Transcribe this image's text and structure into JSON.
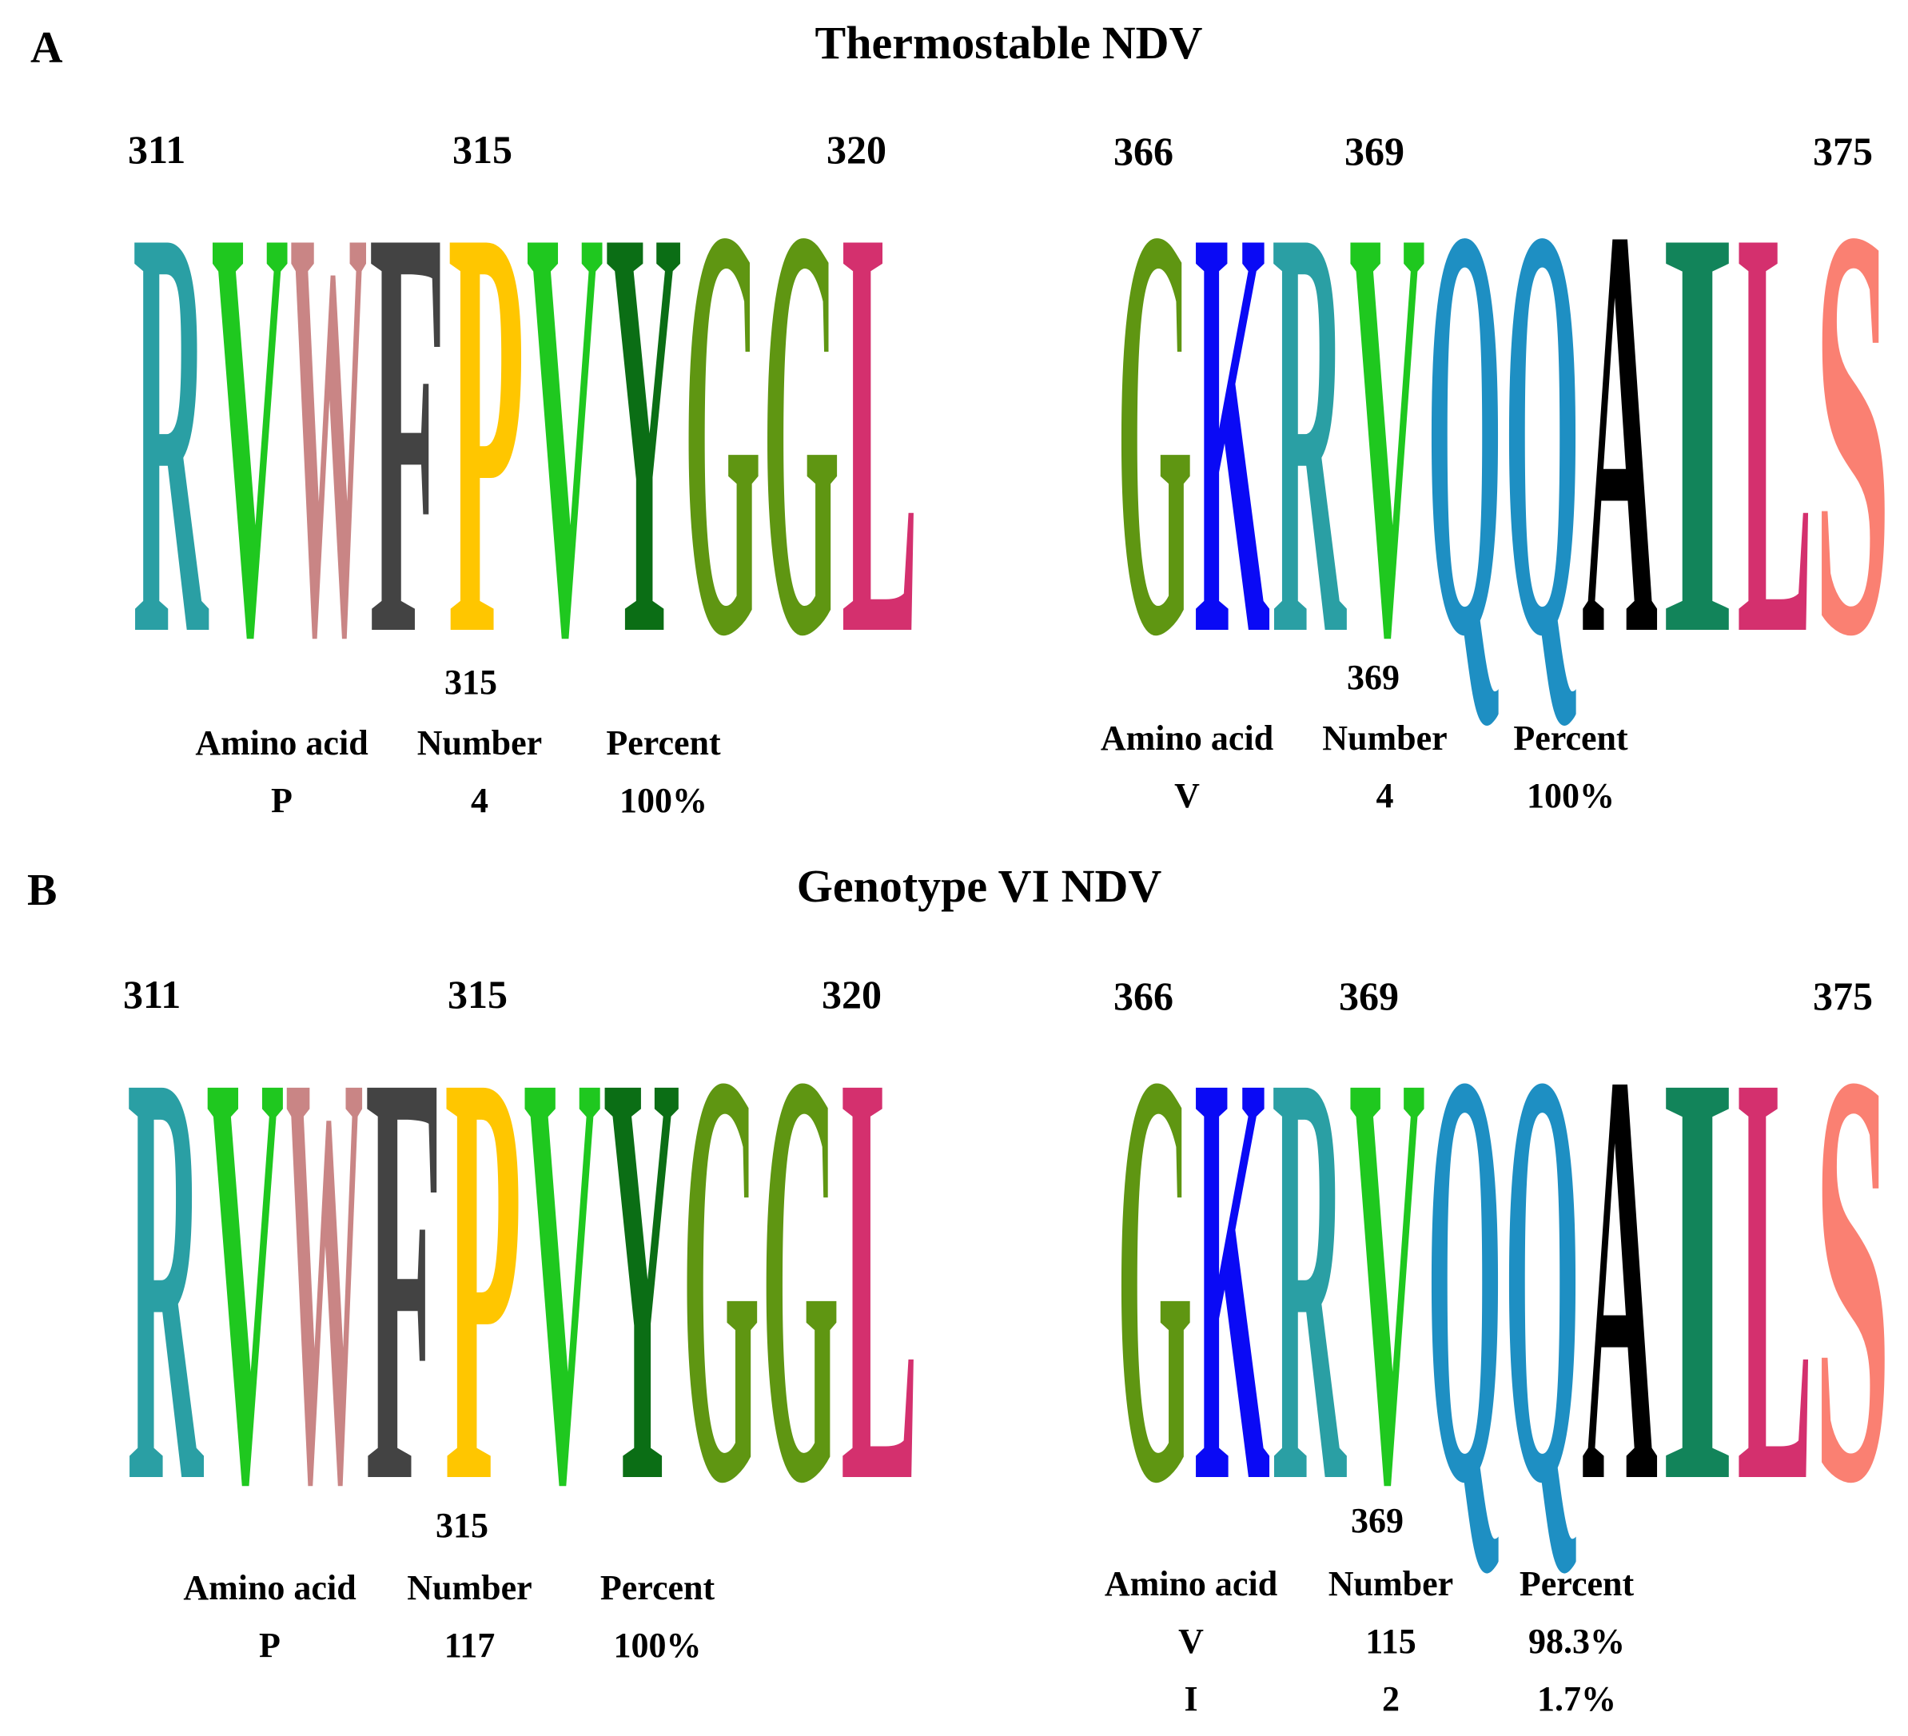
{
  "colors": {
    "R": "#2a9fa4",
    "V": "#1fc81f",
    "W": "#c98585",
    "F": "#434343",
    "P": "#ffc600",
    "Y": "#0b6e15",
    "G": "#5f9612",
    "L": "#d4306e",
    "K": "#0a0af5",
    "Q": "#1e8fc3",
    "A": "#000000",
    "I": "#12845a",
    "S": "#fa8072"
  },
  "panels": [
    {
      "letter": "A",
      "title": "Thermostable NDV",
      "logos": [
        {
          "sequence": [
            "R",
            "V",
            "W",
            "F",
            "P",
            "V",
            "Y",
            "G",
            "G",
            "L"
          ],
          "position_labels": [
            "311",
            "315",
            "320"
          ],
          "highlight_position": "315",
          "table": {
            "headers": [
              "Amino acid",
              "Number",
              "Percent"
            ],
            "rows": [
              [
                "P",
                "4",
                "100%"
              ]
            ]
          }
        },
        {
          "sequence": [
            "G",
            "K",
            "R",
            "V",
            "Q",
            "Q",
            "A",
            "I",
            "L",
            "S"
          ],
          "position_labels": [
            "366",
            "369",
            "375"
          ],
          "highlight_position": "369",
          "table": {
            "headers": [
              "Amino acid",
              "Number",
              "Percent"
            ],
            "rows": [
              [
                "V",
                "4",
                "100%"
              ]
            ]
          }
        }
      ]
    },
    {
      "letter": "B",
      "title": "Genotype VI NDV",
      "logos": [
        {
          "sequence": [
            "R",
            "V",
            "W",
            "F",
            "P",
            "V",
            "Y",
            "G",
            "G",
            "L"
          ],
          "position_labels": [
            "311",
            "315",
            "320"
          ],
          "highlight_position": "315",
          "table": {
            "headers": [
              "Amino acid",
              "Number",
              "Percent"
            ],
            "rows": [
              [
                "P",
                "117",
                "100%"
              ]
            ]
          }
        },
        {
          "sequence": [
            "G",
            "K",
            "R",
            "V",
            "Q",
            "Q",
            "A",
            "I",
            "L",
            "S"
          ],
          "position_labels": [
            "366",
            "369",
            "375"
          ],
          "highlight_position": "369",
          "table": {
            "headers": [
              "Amino acid",
              "Number",
              "Percent"
            ],
            "rows": [
              [
                "V",
                "115",
                "98.3%"
              ],
              [
                "I",
                "2",
                "1.7%"
              ]
            ]
          }
        }
      ]
    }
  ]
}
